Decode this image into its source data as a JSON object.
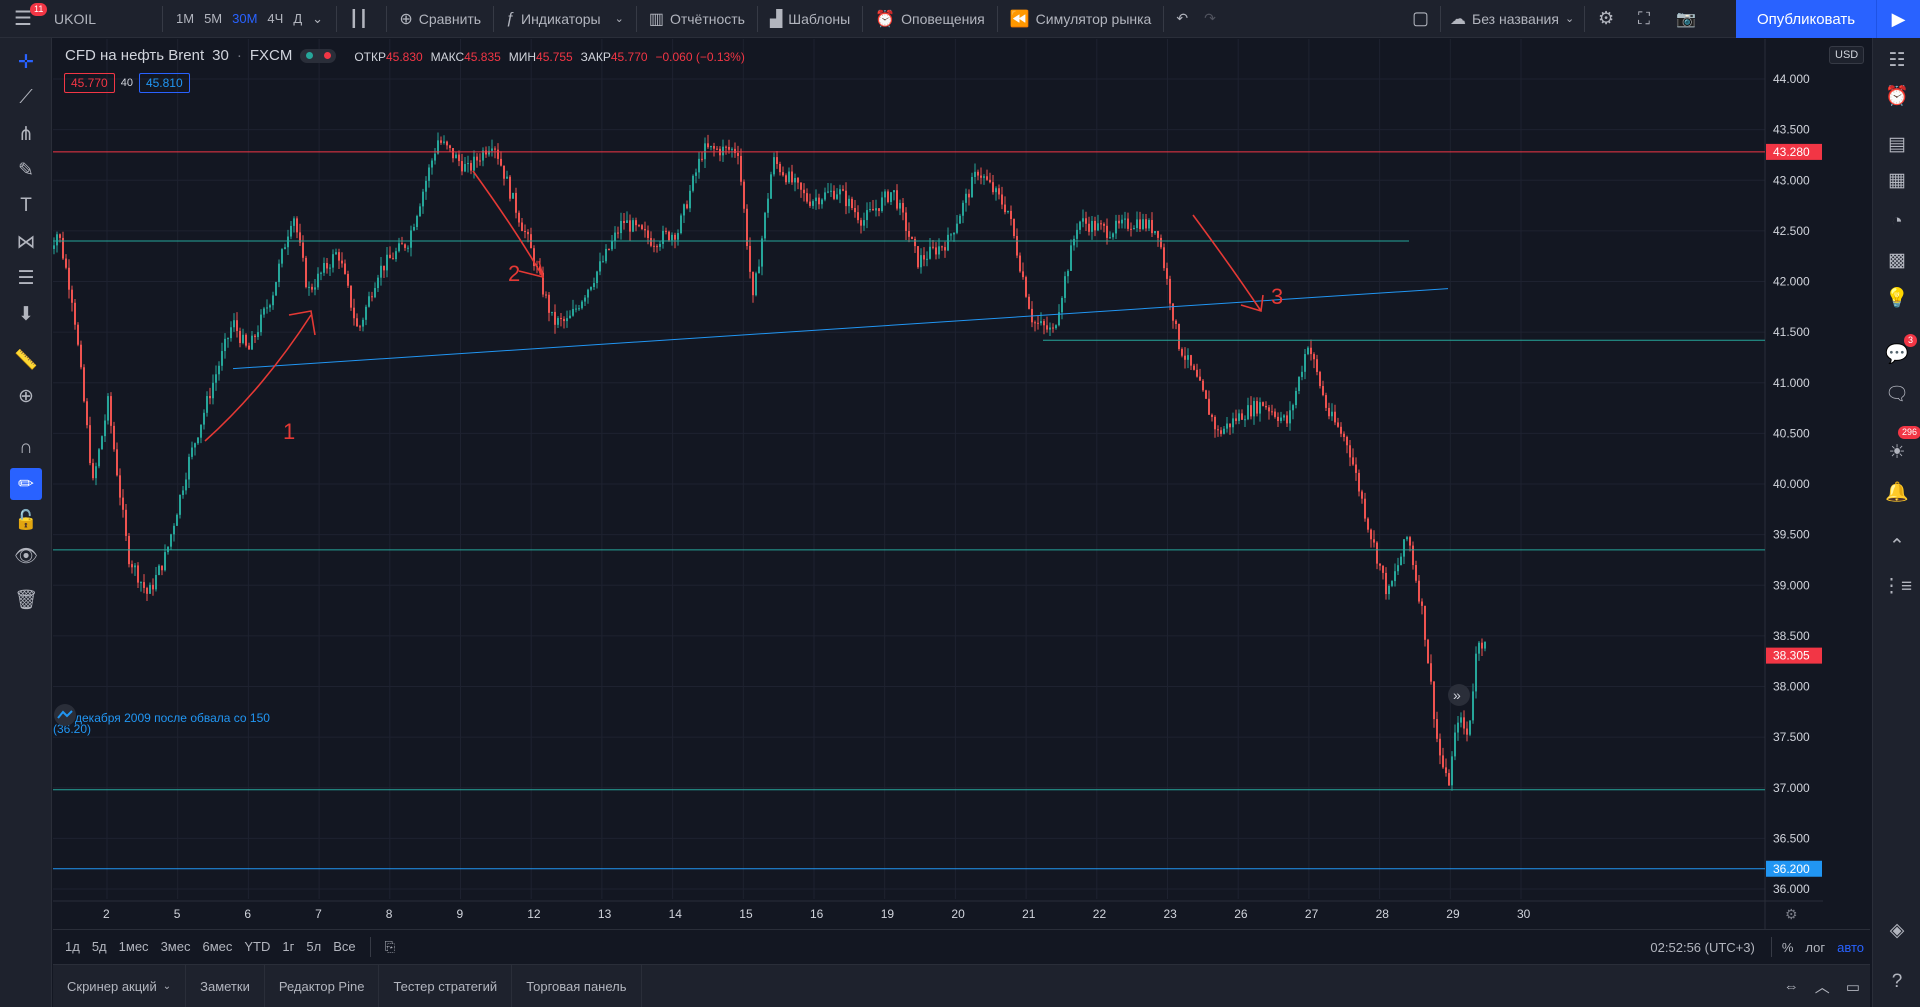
{
  "topbar": {
    "menu_badge": "11",
    "symbol": "UKOIL",
    "timeframes": [
      "1М",
      "5М",
      "30М",
      "4Ч",
      "Д"
    ],
    "active_timeframe": "30М",
    "compare": "Сравнить",
    "indicators": "Индикаторы",
    "reports": "Отчётность",
    "templates": "Шаблоны",
    "alerts": "Оповещения",
    "simulator": "Симулятор рынка",
    "layout_name": "Без названия",
    "publish": "Опубликовать"
  },
  "legend": {
    "title": "CFD на нефть Brent",
    "interval": "30",
    "exchange": "FXCM",
    "open_label": "ОТКР",
    "open": "45.830",
    "high_label": "МАКС",
    "high": "45.835",
    "low_label": "МИН",
    "low": "45.755",
    "close_label": "ЗАКР",
    "close": "45.770",
    "change": "−0.060 (−0.13%)",
    "bid": "45.770",
    "spread": "40",
    "ask": "45.810"
  },
  "right_panel": {
    "chat_badge": "3",
    "ideas_badge": "296"
  },
  "chart_data": {
    "type": "candlestick",
    "currency": "USD",
    "y_ticks": [
      "44.000",
      "43.500",
      "43.000",
      "42.500",
      "42.000",
      "41.500",
      "41.000",
      "40.500",
      "40.000",
      "39.500",
      "39.000",
      "38.500",
      "38.000",
      "37.500",
      "37.000",
      "36.500",
      "36.000"
    ],
    "x_ticks": [
      "2",
      "5",
      "6",
      "7",
      "8",
      "9",
      "12",
      "13",
      "14",
      "15",
      "16",
      "19",
      "20",
      "21",
      "22",
      "23",
      "26",
      "27",
      "28",
      "29",
      "30"
    ],
    "ylim": [
      36.0,
      44.0
    ],
    "horizontal_levels": [
      {
        "price": 43.28,
        "label": "43.280",
        "color": "#f23645"
      },
      {
        "price": 42.4,
        "label": "",
        "color": "#26a69a"
      },
      {
        "price": 41.42,
        "label": "",
        "color": "#26a69a"
      },
      {
        "price": 39.35,
        "label": "",
        "color": "#26a69a"
      },
      {
        "price": 36.98,
        "label": "",
        "color": "#26a69a"
      },
      {
        "price": 36.2,
        "label": "36.200",
        "color": "#2196f3"
      }
    ],
    "last_price": {
      "price": 38.305,
      "label": "38.305",
      "color": "#f23645"
    },
    "trendline": {
      "color": "#2196f3"
    },
    "annotations": [
      "1",
      "2",
      "3"
    ],
    "level_note": "декабря 2009 после обвала со 150",
    "level_note_value": "(36.20)"
  },
  "range_bar": {
    "ranges": [
      "1д",
      "5д",
      "1мес",
      "3мес",
      "6мес",
      "YTD",
      "1г",
      "5л",
      "Все"
    ],
    "clock": "02:52:56 (UTC+3)",
    "percent": "%",
    "log": "лог",
    "auto": "авто"
  },
  "bottom_tabs": [
    "Скринер акций",
    "Заметки",
    "Редактор Pine",
    "Тестер стратегий",
    "Торговая панель"
  ]
}
